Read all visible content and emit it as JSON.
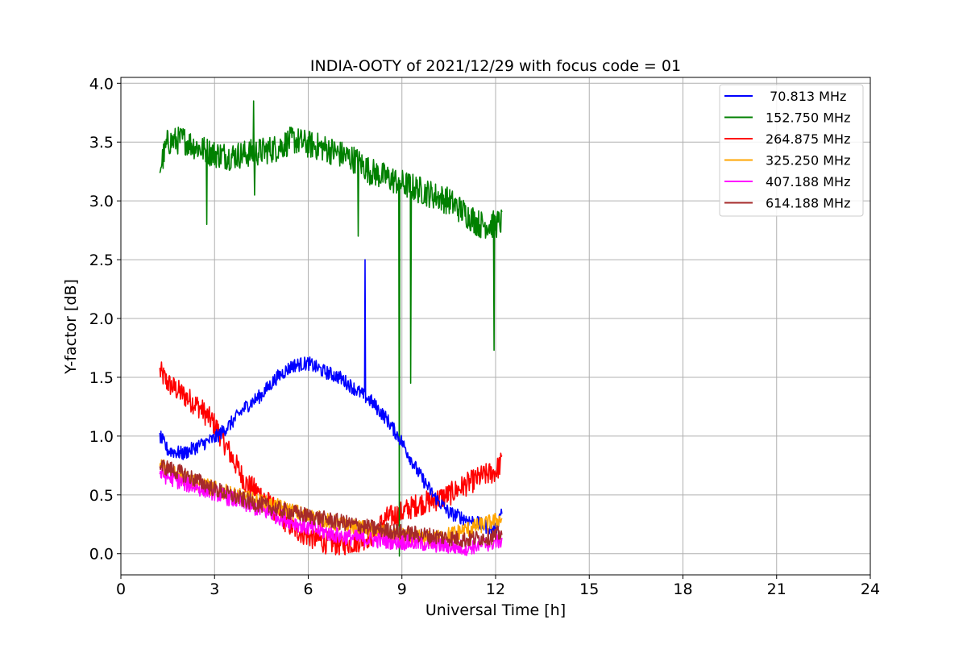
{
  "chart_data": {
    "type": "line",
    "title": "INDIA-OOTY of 2021/12/29 with focus code = 01",
    "xlabel": "Universal Time [h]",
    "ylabel": "Y-factor [dB]",
    "xlim": [
      0,
      24
    ],
    "ylim": [
      -0.18,
      4.05
    ],
    "xticks": [
      "0",
      "3",
      "6",
      "9",
      "12",
      "15",
      "18",
      "21",
      "24"
    ],
    "yticks": [
      "0.0",
      "0.5",
      "1.0",
      "1.5",
      "2.0",
      "2.5",
      "3.0",
      "3.5",
      "4.0"
    ],
    "grid": true,
    "legend_position": "top-right",
    "series": [
      {
        "name": " 70.813 MHz",
        "color": "#0000ff",
        "x": [
          1.25,
          1.5,
          2.0,
          2.5,
          3.0,
          3.5,
          4.0,
          4.5,
          5.0,
          5.5,
          6.0,
          6.5,
          7.0,
          7.5,
          8.0,
          8.5,
          9.0,
          9.5,
          10.0,
          10.5,
          11.0,
          11.5,
          12.0,
          12.2
        ],
        "values": [
          1.0,
          0.88,
          0.85,
          0.92,
          0.98,
          1.1,
          1.25,
          1.35,
          1.5,
          1.6,
          1.62,
          1.55,
          1.5,
          1.4,
          1.3,
          1.15,
          0.95,
          0.7,
          0.5,
          0.35,
          0.3,
          0.25,
          0.2,
          0.38
        ],
        "noise": 0.06,
        "spikes": [
          {
            "x": 7.82,
            "y": 2.5
          }
        ]
      },
      {
        "name": "152.750 MHz",
        "color": "#008000",
        "x": [
          1.25,
          1.5,
          2.0,
          2.5,
          3.0,
          3.5,
          4.0,
          4.5,
          5.0,
          5.5,
          6.0,
          6.5,
          7.0,
          7.5,
          8.0,
          8.5,
          9.0,
          9.5,
          10.0,
          10.5,
          11.0,
          11.5,
          12.0,
          12.2
        ],
        "values": [
          3.28,
          3.5,
          3.52,
          3.45,
          3.4,
          3.38,
          3.4,
          3.42,
          3.45,
          3.52,
          3.48,
          3.45,
          3.4,
          3.35,
          3.25,
          3.2,
          3.15,
          3.1,
          3.05,
          3.0,
          2.9,
          2.8,
          2.8,
          2.82
        ],
        "noise": 0.12,
        "spikes": [
          {
            "x": 2.75,
            "y": 2.8
          },
          {
            "x": 4.25,
            "y": 3.85
          },
          {
            "x": 4.28,
            "y": 3.05
          },
          {
            "x": 7.6,
            "y": 2.7
          },
          {
            "x": 8.92,
            "y": -0.02
          },
          {
            "x": 9.28,
            "y": 1.45
          },
          {
            "x": 11.95,
            "y": 1.73
          }
        ]
      },
      {
        "name": "264.875 MHz",
        "color": "#ff0000",
        "x": [
          1.25,
          1.5,
          2.0,
          2.5,
          3.0,
          3.5,
          4.0,
          4.5,
          5.0,
          5.5,
          6.0,
          6.5,
          7.0,
          7.5,
          8.0,
          8.5,
          9.0,
          9.5,
          10.0,
          10.5,
          11.0,
          11.5,
          12.0,
          12.2
        ],
        "values": [
          1.55,
          1.45,
          1.35,
          1.25,
          1.1,
          0.85,
          0.6,
          0.5,
          0.35,
          0.22,
          0.15,
          0.1,
          0.08,
          0.1,
          0.15,
          0.3,
          0.35,
          0.42,
          0.45,
          0.5,
          0.58,
          0.65,
          0.7,
          0.78
        ],
        "noise": 0.1,
        "spikes": []
      },
      {
        "name": "325.250 MHz",
        "color": "#ffa500",
        "x": [
          1.25,
          2.0,
          3.0,
          4.0,
          5.0,
          6.0,
          7.0,
          8.0,
          9.0,
          10.0,
          11.0,
          12.0,
          12.2
        ],
        "values": [
          0.75,
          0.65,
          0.55,
          0.47,
          0.4,
          0.32,
          0.25,
          0.2,
          0.15,
          0.12,
          0.2,
          0.28,
          0.3
        ],
        "noise": 0.07,
        "spikes": []
      },
      {
        "name": "407.188 MHz",
        "color": "#ff00ff",
        "x": [
          1.25,
          2.0,
          3.0,
          4.0,
          5.0,
          6.0,
          7.0,
          8.0,
          9.0,
          10.0,
          11.0,
          12.0,
          12.2
        ],
        "values": [
          0.68,
          0.6,
          0.52,
          0.42,
          0.32,
          0.22,
          0.15,
          0.12,
          0.1,
          0.08,
          0.05,
          0.1,
          0.12
        ],
        "noise": 0.07,
        "spikes": []
      },
      {
        "name": "614.188 MHz",
        "color": "#a52a2a",
        "x": [
          1.25,
          2.0,
          3.0,
          4.0,
          5.0,
          6.0,
          7.0,
          8.0,
          9.0,
          10.0,
          11.0,
          12.0,
          12.2
        ],
        "values": [
          0.75,
          0.68,
          0.55,
          0.45,
          0.38,
          0.32,
          0.27,
          0.22,
          0.18,
          0.15,
          0.12,
          0.15,
          0.18
        ],
        "noise": 0.07,
        "spikes": []
      }
    ]
  }
}
